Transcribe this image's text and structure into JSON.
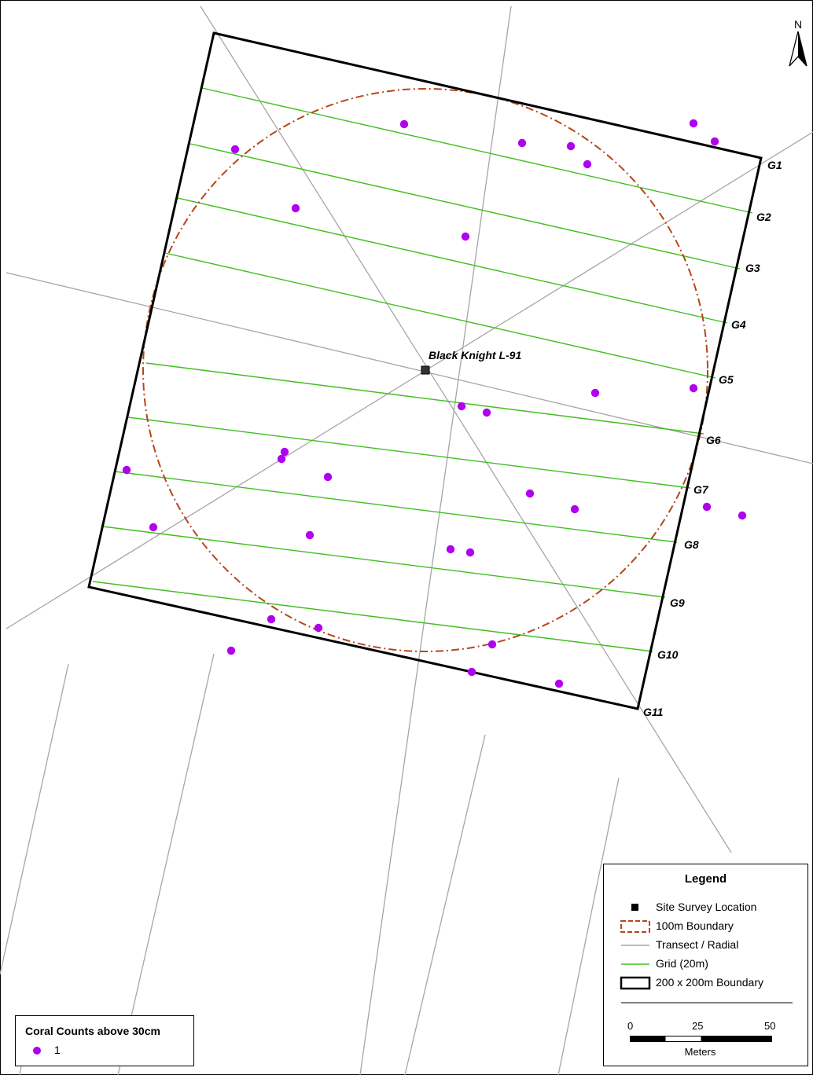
{
  "map": {
    "site_label": "Black Knight L-91",
    "grid_labels": [
      "G1",
      "G2",
      "G3",
      "G4",
      "G5",
      "G6",
      "G7",
      "G8",
      "G9",
      "G10",
      "G11"
    ],
    "north_label": "N"
  },
  "legend": {
    "title": "Legend",
    "items": [
      {
        "icon": "site-square-icon",
        "label": "Site Survey Location"
      },
      {
        "icon": "dashed-circle-icon",
        "label": "100m Boundary"
      },
      {
        "icon": "gray-line-icon",
        "label": "Transect / Radial"
      },
      {
        "icon": "green-line-icon",
        "label": "Grid (20m)"
      },
      {
        "icon": "black-rect-icon",
        "label": "200 x 200m Boundary"
      }
    ],
    "scale": {
      "ticks": [
        "0",
        "25",
        "50"
      ],
      "unit": "Meters"
    }
  },
  "coral_legend": {
    "title": "Coral Counts above 30cm",
    "value": "1"
  },
  "colors": {
    "coral": "#b000f0",
    "grid": "#3fbf1f",
    "transect": "#a6a6a6",
    "boundary100": "#b5461a",
    "boundary200": "#000000"
  }
}
